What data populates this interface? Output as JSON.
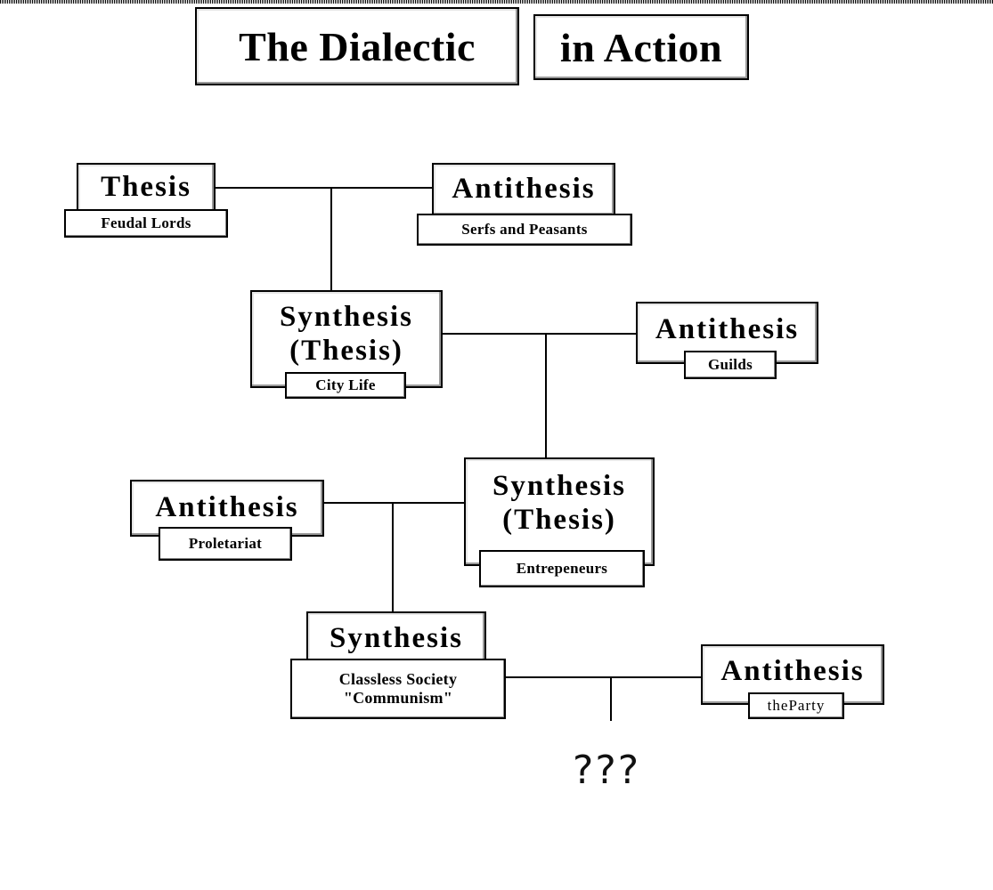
{
  "title": {
    "part1": "The Dialectic",
    "part2": "in Action"
  },
  "nodes": {
    "thesis1": {
      "label": "Thesis",
      "sub": "Feudal Lords"
    },
    "antithesis1": {
      "label": "Antithesis",
      "sub": "Serfs and Peasants"
    },
    "synthesis1": {
      "line1": "Synthesis",
      "line2": "(Thesis)",
      "sub": "City Life"
    },
    "antithesis2": {
      "label": "Antithesis",
      "sub": "Guilds"
    },
    "synthesis2": {
      "line1": "Synthesis",
      "line2": "(Thesis)",
      "sub": "Entrepeneurs"
    },
    "antithesis3": {
      "label": "Antithesis",
      "sub": "Proletariat"
    },
    "synthesis3": {
      "label": "Synthesis",
      "sub_line1": "Classless Society",
      "sub_line2": "\"Communism\""
    },
    "antithesis4": {
      "label": "Antithesis",
      "sub": "theParty"
    }
  },
  "unknown_outcome": "???"
}
